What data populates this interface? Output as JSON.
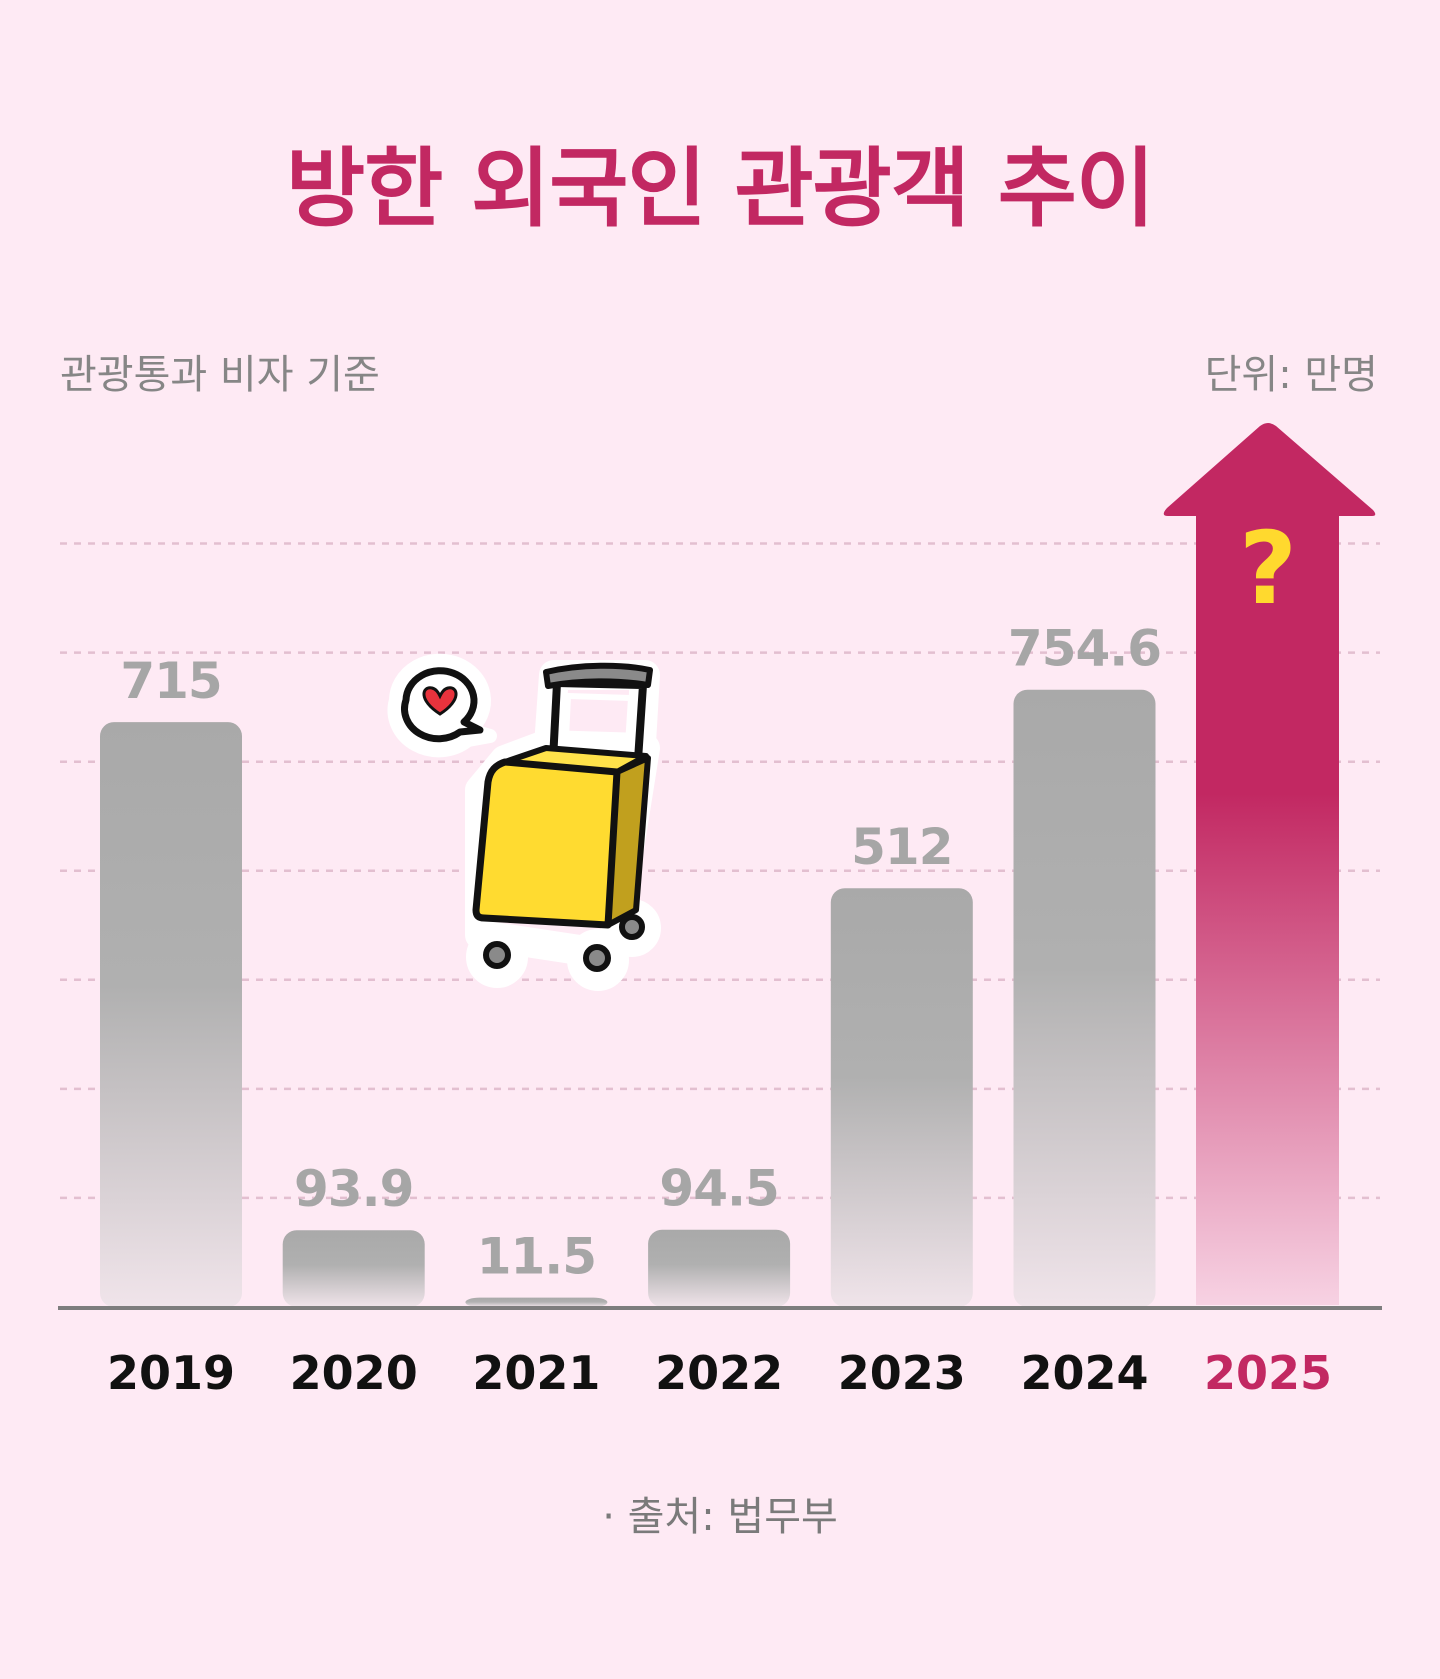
{
  "title": "방한 외국인 관광객 추이",
  "basis_note": "관광통과 비자 기준",
  "unit_note": "단위: 만명",
  "source_note": "· 출처: 법무부",
  "colors": {
    "background": "#feeaf4",
    "accent": "#c22862",
    "bar_gray": "#acacac",
    "value_label": "#a6a6a6",
    "question_mark": "#ffd92e"
  },
  "chart_data": {
    "type": "bar",
    "categories": [
      "2019",
      "2020",
      "2021",
      "2022",
      "2023",
      "2024",
      "2025"
    ],
    "values": [
      715,
      93.9,
      11.5,
      94.5,
      512,
      754.6,
      null
    ],
    "value_labels": [
      "715",
      "93.9",
      "11.5",
      "94.5",
      "512",
      "754.6",
      ""
    ],
    "highlight_category": "2025",
    "highlight_mark": "?",
    "title": "방한 외국인 관광객 추이",
    "xlabel": "",
    "ylabel": "",
    "ylim": [
      0,
      1000
    ],
    "grid": true,
    "illustrations": [
      "suitcase-icon",
      "heart-speech-bubble-icon",
      "up-arrow-icon"
    ]
  }
}
